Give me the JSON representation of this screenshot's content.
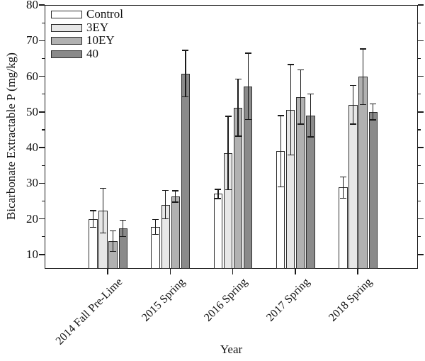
{
  "figure": {
    "background": "#ffffff",
    "frame_color": "#1a1a1a",
    "bar_border_color": "#2e2e2e"
  },
  "chart_data": {
    "type": "bar",
    "title": "",
    "xlabel": "Year",
    "ylabel": "Bicarbonate Extractable P (mg/kg)",
    "ylim": [
      6,
      80
    ],
    "y_major_ticks": [
      10,
      20,
      30,
      40,
      50,
      60,
      70,
      80
    ],
    "y_minor_step": 5,
    "grid": false,
    "legend_position": "top-left-inside",
    "error_bars": "symmetric, caps both ends",
    "categories": [
      "2014 Fall Pre-Lime",
      "2015 Spring",
      "2016 Spring",
      "2017 Spring",
      "2018 Spring"
    ],
    "series": [
      {
        "name": "Control",
        "color": "#ffffff",
        "values": [
          20.0,
          17.8,
          27.0,
          39.0,
          28.8
        ],
        "errors": [
          2.3,
          2.1,
          1.3,
          10.0,
          3.0
        ]
      },
      {
        "name": "3EY",
        "color": "#e7e7e7",
        "values": [
          22.3,
          24.0,
          38.5,
          50.6,
          52.0
        ],
        "errors": [
          6.3,
          4.0,
          10.3,
          12.7,
          5.4
        ]
      },
      {
        "name": "10EY",
        "color": "#b1b1b1",
        "values": [
          13.8,
          26.3,
          51.2,
          54.2,
          59.9
        ],
        "errors": [
          2.9,
          1.6,
          8.0,
          7.6,
          7.8
        ]
      },
      {
        "name": "40",
        "color": "#8a8a8a",
        "values": [
          17.3,
          60.8,
          57.2,
          49.0,
          50.0
        ],
        "errors": [
          2.3,
          6.5,
          9.3,
          6.0,
          2.2
        ]
      }
    ]
  }
}
